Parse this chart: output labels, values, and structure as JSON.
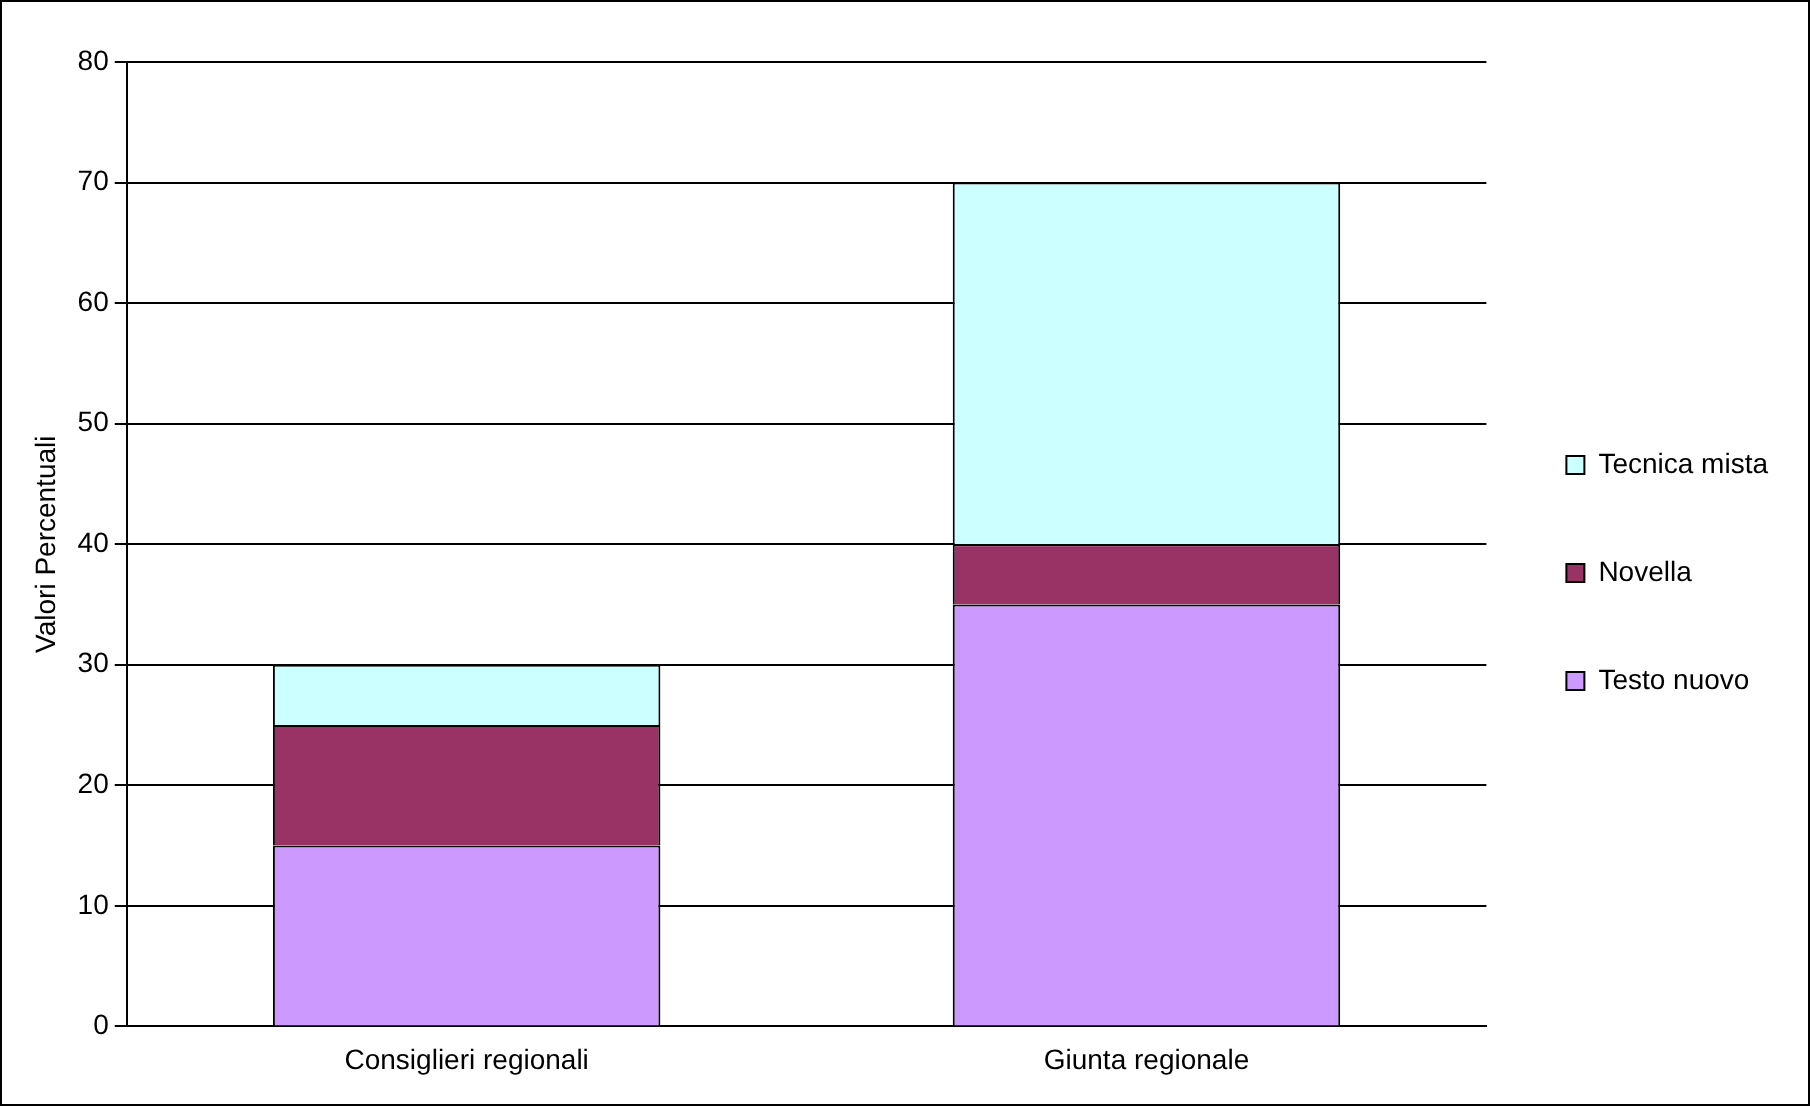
{
  "chart_data": {
    "type": "bar",
    "stacked": true,
    "ylabel": "Valori Percentuali",
    "categories": [
      "Consiglieri regionali",
      "Giunta regionale"
    ],
    "series": [
      {
        "name": "Testo nuovo",
        "color": "#cc99ff",
        "values": [
          15,
          35
        ]
      },
      {
        "name": "Novella",
        "color": "#993366",
        "values": [
          10,
          5
        ]
      },
      {
        "name": "Tecnica mista",
        "color": "#ccffff",
        "values": [
          5,
          30
        ]
      }
    ],
    "ylim": [
      0,
      80
    ],
    "yticks": [
      0,
      10,
      20,
      30,
      40,
      50,
      60,
      70,
      80
    ],
    "grid": "y",
    "legend": "right"
  }
}
